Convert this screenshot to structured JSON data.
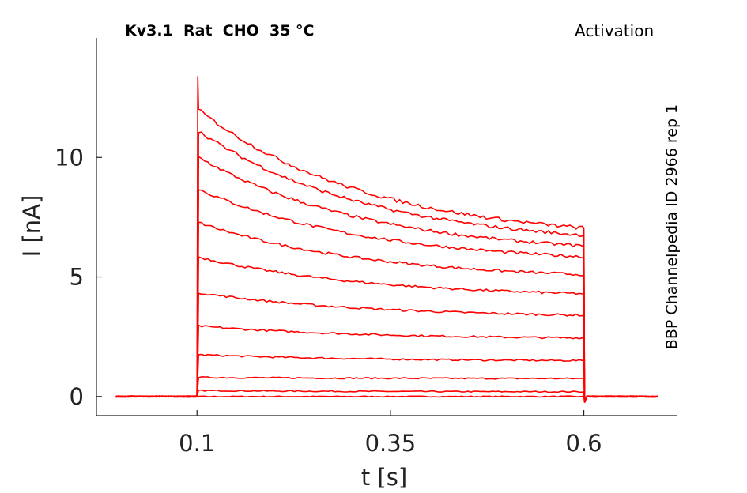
{
  "header": {
    "title_left": "Kv3.1  Rat  CHO  35 °C",
    "title_right": "Activation",
    "side_label": "BBP Channelpedia ID 2966 rep 1"
  },
  "chart_data": {
    "type": "line",
    "xlabel": "t [s]",
    "ylabel": "I [nA]",
    "xlim": [
      -0.03,
      0.72
    ],
    "ylim": [
      -0.8,
      15
    ],
    "xticks": [
      0.1,
      0.35,
      0.6
    ],
    "xtick_labels": [
      "0.1",
      "0.35",
      "0.6"
    ],
    "yticks": [
      0,
      5,
      10
    ],
    "ytick_labels": [
      "0",
      "5",
      "10"
    ],
    "color": "#ff0000",
    "grid": false,
    "legend": "none",
    "stimulus": {
      "start": 0.1,
      "end": 0.6,
      "baseline_start": -0.005,
      "baseline_end": 0.7
    },
    "series": [
      {
        "start": 0.0,
        "end": 0.0
      },
      {
        "start": 0.25,
        "end": 0.2
      },
      {
        "start": 0.8,
        "end": 0.75
      },
      {
        "start": 1.75,
        "end": 1.5
      },
      {
        "start": 2.95,
        "end": 2.45
      },
      {
        "start": 4.35,
        "end": 3.4
      },
      {
        "start": 5.85,
        "end": 4.3
      },
      {
        "start": 7.3,
        "end": 5.1
      },
      {
        "start": 8.7,
        "end": 5.85
      },
      {
        "start": 10.05,
        "end": 6.3
      },
      {
        "start": 11.15,
        "end": 6.75
      },
      {
        "start": 12.05,
        "end": 7.05,
        "peak": 13.4
      }
    ]
  }
}
